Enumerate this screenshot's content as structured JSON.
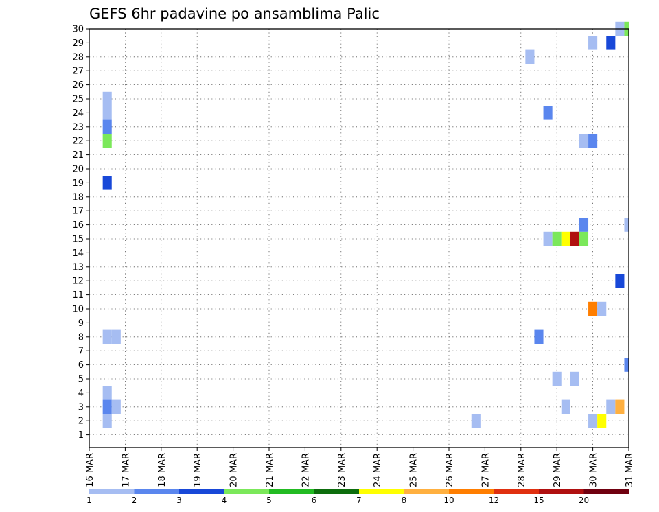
{
  "chart_data": {
    "type": "heatmap",
    "title": "GEFS 6hr padavine po ansamblima Palic",
    "xlabel": "",
    "ylabel": "",
    "x_tick_labels": [
      "16 MAR",
      "17 MAR",
      "18 MAR",
      "19 MAR",
      "20 MAR",
      "21 MAR",
      "22 MAR",
      "23 MAR",
      "24 MAR",
      "25 MAR",
      "26 MAR",
      "27 MAR",
      "28 MAR",
      "29 MAR",
      "30 MAR",
      "31 MAR"
    ],
    "x_range_days": [
      16,
      31
    ],
    "y_tick_labels": [
      "1",
      "2",
      "3",
      "4",
      "5",
      "6",
      "7",
      "8",
      "9",
      "10",
      "11",
      "12",
      "13",
      "14",
      "15",
      "16",
      "17",
      "18",
      "19",
      "20",
      "21",
      "22",
      "23",
      "24",
      "25",
      "26",
      "27",
      "28",
      "29",
      "30"
    ],
    "y_range": [
      0.5,
      30
    ],
    "grid": true,
    "colorbar": {
      "labels": [
        "1",
        "2",
        "3",
        "4",
        "5",
        "6",
        "7",
        "8",
        "10",
        "12",
        "15",
        "20"
      ],
      "colors": [
        "#a6bdf2",
        "#5a86ee",
        "#1848d8",
        "#7be85a",
        "#22bb22",
        "#0d6d0d",
        "#ffff00",
        "#ffb040",
        "#ff7e00",
        "#e03010",
        "#b01010",
        "#700010"
      ]
    },
    "cells": [
      {
        "day": 16.5,
        "member": 25,
        "level": 1
      },
      {
        "day": 16.5,
        "member": 24,
        "level": 1
      },
      {
        "day": 16.5,
        "member": 23,
        "level": 2
      },
      {
        "day": 16.5,
        "member": 22,
        "level": 4
      },
      {
        "day": 16.5,
        "member": 19,
        "level": 3
      },
      {
        "day": 16.5,
        "member": 8,
        "level": 1
      },
      {
        "day": 16.75,
        "member": 8,
        "level": 1
      },
      {
        "day": 16.5,
        "member": 4,
        "level": 1
      },
      {
        "day": 16.5,
        "member": 3,
        "level": 2
      },
      {
        "day": 16.75,
        "member": 3,
        "level": 1
      },
      {
        "day": 16.5,
        "member": 2,
        "level": 1
      },
      {
        "day": 26.75,
        "member": 2,
        "level": 1
      },
      {
        "day": 28.25,
        "member": 28,
        "level": 1
      },
      {
        "day": 28.5,
        "member": 8,
        "level": 2
      },
      {
        "day": 28.75,
        "member": 24,
        "level": 2
      },
      {
        "day": 28.75,
        "member": 15,
        "level": 1
      },
      {
        "day": 29.0,
        "member": 15,
        "level": 4
      },
      {
        "day": 29.25,
        "member": 15,
        "level": 7
      },
      {
        "day": 29.5,
        "member": 15,
        "level": 11
      },
      {
        "day": 29.75,
        "member": 15,
        "level": 4
      },
      {
        "day": 29.75,
        "member": 16,
        "level": 2
      },
      {
        "day": 29.0,
        "member": 5,
        "level": 1
      },
      {
        "day": 29.5,
        "member": 5,
        "level": 1
      },
      {
        "day": 29.25,
        "member": 3,
        "level": 1
      },
      {
        "day": 29.75,
        "member": 22,
        "level": 1
      },
      {
        "day": 30.0,
        "member": 22,
        "level": 2
      },
      {
        "day": 30.0,
        "member": 29,
        "level": 1
      },
      {
        "day": 30.0,
        "member": 10,
        "level": 9
      },
      {
        "day": 30.25,
        "member": 10,
        "level": 1
      },
      {
        "day": 30.0,
        "member": 2,
        "level": 1
      },
      {
        "day": 30.25,
        "member": 2,
        "level": 7
      },
      {
        "day": 30.5,
        "member": 29,
        "level": 3
      },
      {
        "day": 30.5,
        "member": 3,
        "level": 1
      },
      {
        "day": 30.75,
        "member": 3,
        "level": 8
      },
      {
        "day": 30.75,
        "member": 12,
        "level": 3
      },
      {
        "day": 30.75,
        "member": 30,
        "level": 1
      },
      {
        "day": 31.0,
        "member": 30,
        "level": 4
      },
      {
        "day": 31.0,
        "member": 16,
        "level": 1
      },
      {
        "day": 31.0,
        "member": 6,
        "level": 2
      }
    ]
  }
}
